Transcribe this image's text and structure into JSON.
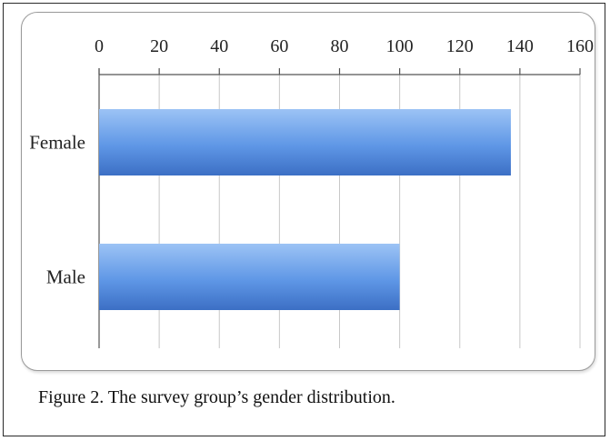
{
  "caption": "Figure 2. The survey group’s gender distribution.",
  "colors": {
    "bar_light": "#9cc3f5",
    "bar_mid": "#5f97e6",
    "bar_dark": "#3c6fc5",
    "grid": "#c8c8c8"
  },
  "chart_data": {
    "type": "bar",
    "orientation": "horizontal",
    "categories": [
      "Female",
      "Male"
    ],
    "values": [
      137,
      100
    ],
    "xlim": [
      0,
      160
    ],
    "ticks": [
      0,
      20,
      40,
      60,
      80,
      100,
      120,
      140,
      160
    ],
    "tick_labels": [
      "0",
      "20",
      "40",
      "60",
      "80",
      "100",
      "120",
      "140",
      "160"
    ],
    "axis_position": "top",
    "grid": true
  }
}
